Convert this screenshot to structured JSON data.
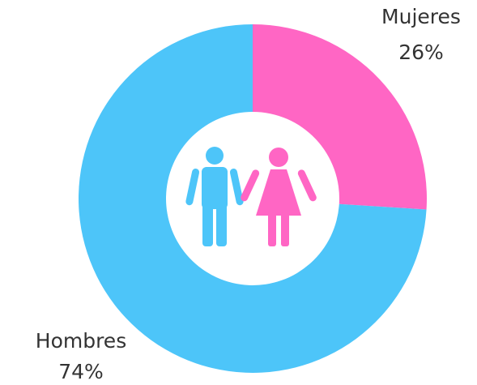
{
  "chart_data": {
    "type": "donut",
    "categories": [
      "Mujeres",
      "Hombres"
    ],
    "values": [
      26,
      74
    ],
    "value_labels": [
      "26%",
      "74%"
    ],
    "colors": [
      "#ff66c4",
      "#4dc5f9"
    ]
  }
}
